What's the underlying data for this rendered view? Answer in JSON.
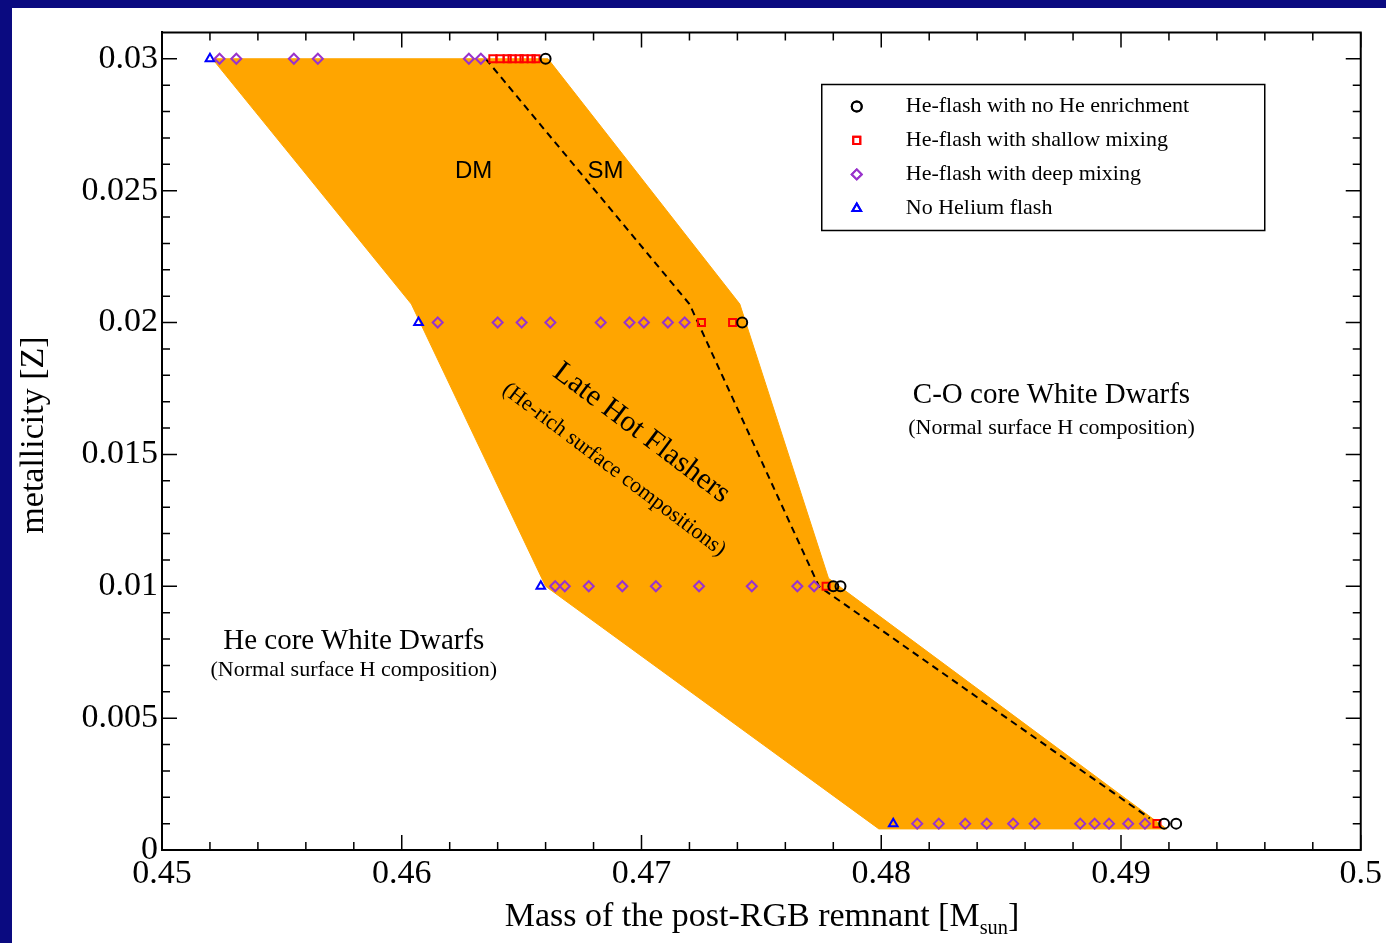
{
  "chart_data": {
    "type": "scatter",
    "xlabel": "Mass of the post-RGB remnant [M$_{sun}$]",
    "ylabel": "metallicity [Z]",
    "xlim": [
      0.45,
      0.5
    ],
    "ylim": [
      0,
      0.031
    ],
    "xticks": [
      0.45,
      {
        "value": 0.452,
        "label": null
      },
      {
        "value": 0.454,
        "label": null
      },
      {
        "value": 0.456,
        "label": null
      },
      {
        "value": 0.458,
        "label": null
      },
      0.46,
      {
        "value": 0.462,
        "label": null
      },
      {
        "value": 0.464,
        "label": null
      },
      {
        "value": 0.466,
        "label": null
      },
      {
        "value": 0.468,
        "label": null
      },
      0.47,
      {
        "value": 0.472,
        "label": null
      },
      {
        "value": 0.474,
        "label": null
      },
      {
        "value": 0.476,
        "label": null
      },
      {
        "value": 0.478,
        "label": null
      },
      0.48,
      {
        "value": 0.482,
        "label": null
      },
      {
        "value": 0.484,
        "label": null
      },
      {
        "value": 0.486,
        "label": null
      },
      {
        "value": 0.488,
        "label": null
      },
      0.49,
      {
        "value": 0.492,
        "label": null
      },
      {
        "value": 0.494,
        "label": null
      },
      {
        "value": 0.496,
        "label": null
      },
      {
        "value": 0.498,
        "label": null
      },
      0.5
    ],
    "yticks": [
      0,
      {
        "value": 0.001,
        "label": null
      },
      {
        "value": 0.002,
        "label": null
      },
      {
        "value": 0.003,
        "label": null
      },
      {
        "value": 0.004,
        "label": null
      },
      0.005,
      {
        "value": 0.006,
        "label": null
      },
      {
        "value": 0.007,
        "label": null
      },
      {
        "value": 0.008,
        "label": null
      },
      {
        "value": 0.009,
        "label": null
      },
      0.01,
      {
        "value": 0.011,
        "label": null
      },
      {
        "value": 0.012,
        "label": null
      },
      {
        "value": 0.013,
        "label": null
      },
      {
        "value": 0.014,
        "label": null
      },
      0.015,
      {
        "value": 0.016,
        "label": null
      },
      {
        "value": 0.017,
        "label": null
      },
      {
        "value": 0.018,
        "label": null
      },
      {
        "value": 0.019,
        "label": null
      },
      0.02,
      {
        "value": 0.021,
        "label": null
      },
      {
        "value": 0.022,
        "label": null
      },
      {
        "value": 0.023,
        "label": null
      },
      {
        "value": 0.024,
        "label": null
      },
      0.025,
      {
        "value": 0.026,
        "label": null
      },
      {
        "value": 0.027,
        "label": null
      },
      {
        "value": 0.028,
        "label": null
      },
      {
        "value": 0.029,
        "label": null
      },
      0.03
    ],
    "legend": "top right",
    "series": [
      {
        "type": "area",
        "color": "#ffa500",
        "x": [
          0.4521,
          0.4661,
          0.4741,
          0.4778,
          0.4919,
          0.4799,
          0.466,
          0.4604,
          0.4521
        ],
        "values": [
          0.03,
          0.03,
          0.0207,
          0.0103,
          0.0008,
          0.0008,
          0.01,
          0.0207,
          0.03
        ]
      },
      {
        "type": "line",
        "line_style": "dashed",
        "color": "#000000",
        "x": [
          0.4635,
          0.472,
          0.4774,
          0.4912
        ],
        "values": [
          0.03,
          0.0207,
          0.01,
          0.0012
        ]
      },
      {
        "name": "He-flash with no He enrichment",
        "type": "scatter",
        "marker": "circle",
        "color": "#000000",
        "x": [
          0.466,
          0.4742,
          0.478,
          0.4783,
          0.4918,
          0.4923
        ],
        "values": [
          0.03,
          0.02,
          0.01,
          0.01,
          0.001,
          0.001
        ]
      },
      {
        "name": "He-flash with shallow mixing",
        "type": "scatter",
        "marker": "square",
        "color": "#ff0000",
        "x": [
          0.4638,
          0.4641,
          0.4644,
          0.4646,
          0.4649,
          0.4651,
          0.4654,
          0.4656,
          0.4725,
          0.4738,
          0.4777,
          0.4915
        ],
        "values": [
          0.03,
          0.03,
          0.03,
          0.03,
          0.03,
          0.03,
          0.03,
          0.03,
          0.02,
          0.02,
          0.01,
          0.001
        ]
      },
      {
        "name": "He-flash with deep mixing",
        "type": "scatter",
        "marker": "diamond",
        "color": "#9933cc",
        "x": [
          0.4524,
          0.4531,
          0.4555,
          0.4565,
          0.4628,
          0.4633,
          0.4615,
          0.464,
          0.465,
          0.4662,
          0.4683,
          0.4695,
          0.4701,
          0.4711,
          0.4718,
          0.4664,
          0.4668,
          0.4678,
          0.4692,
          0.4706,
          0.4724,
          0.4746,
          0.4765,
          0.4772,
          0.4815,
          0.4824,
          0.4835,
          0.4844,
          0.4855,
          0.4864,
          0.4883,
          0.4889,
          0.4895,
          0.4903,
          0.491
        ],
        "values": [
          0.03,
          0.03,
          0.03,
          0.03,
          0.03,
          0.03,
          0.02,
          0.02,
          0.02,
          0.02,
          0.02,
          0.02,
          0.02,
          0.02,
          0.02,
          0.01,
          0.01,
          0.01,
          0.01,
          0.01,
          0.01,
          0.01,
          0.01,
          0.01,
          0.001,
          0.001,
          0.001,
          0.001,
          0.001,
          0.001,
          0.001,
          0.001,
          0.001,
          0.001,
          0.001
        ]
      },
      {
        "name": "No Helium flash",
        "type": "scatter",
        "marker": "triangle",
        "color": "#0000ff",
        "x": [
          0.452,
          0.4607,
          0.4658,
          0.4805
        ],
        "values": [
          0.03,
          0.02,
          0.01,
          0.001
        ]
      }
    ],
    "annotations": [
      "DM",
      "SM",
      "Late Hot Flashers",
      "(He-rich surface compositions)",
      "C-O core White Dwarfs",
      "(Normal surface H composition)",
      "He core White Dwarfs",
      "(Normal surface H composition)"
    ]
  }
}
